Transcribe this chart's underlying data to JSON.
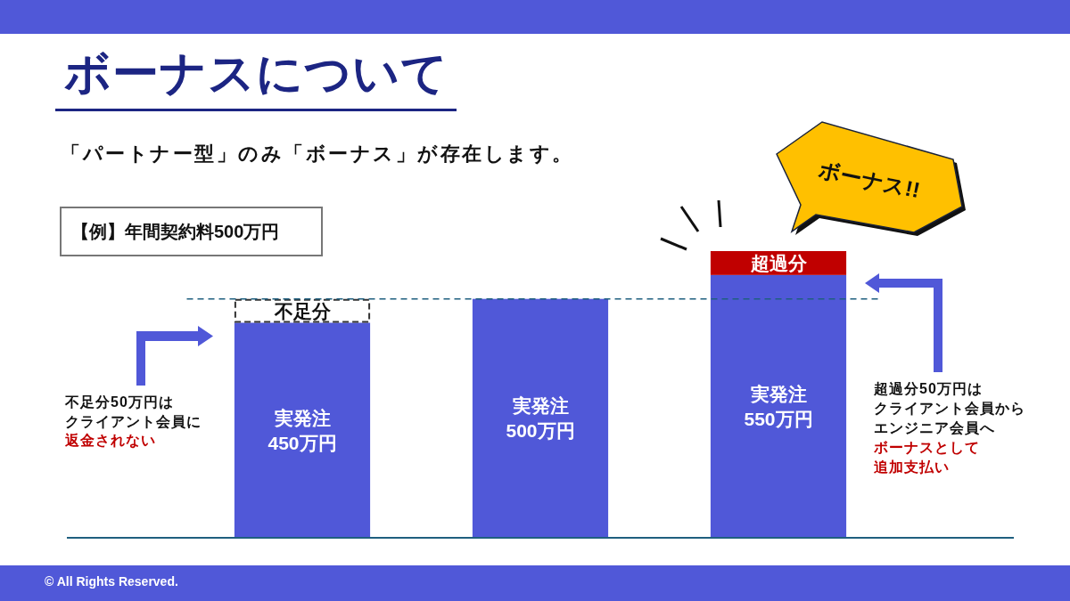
{
  "chart_data": {
    "type": "bar",
    "stacked": true,
    "title": "ボーナスについて",
    "subtitle": "「パートナー型」のみ「ボーナス」が存在します。",
    "categories": [
      null,
      null,
      null
    ],
    "series": [
      {
        "name": "実発注",
        "color": "#5058d8",
        "values": [
          450,
          500,
          550
        ],
        "value_labels": [
          "450万円",
          "500万円",
          "550万円"
        ]
      },
      {
        "name": "不足分",
        "color": "#333333",
        "line_style": "dashed",
        "values": [
          50,
          null,
          null
        ]
      },
      {
        "name": "超過分",
        "color": "#c00000",
        "values": [
          null,
          null,
          50
        ]
      }
    ],
    "ref_lines": [
      {
        "axis": "y",
        "value": 500,
        "color": "#1f5f7f",
        "line_style": "dashed"
      }
    ],
    "annotations": [
      "【例】年間契約料500万円",
      "不足分50万円はクライアント会員に**返金されない**",
      "超過分50万円はクライアント会員からエンジニア会員へ**ボーナスとして追加支払い**",
      "ボーナス!!",
      "© All Rights Reserved."
    ]
  }
}
